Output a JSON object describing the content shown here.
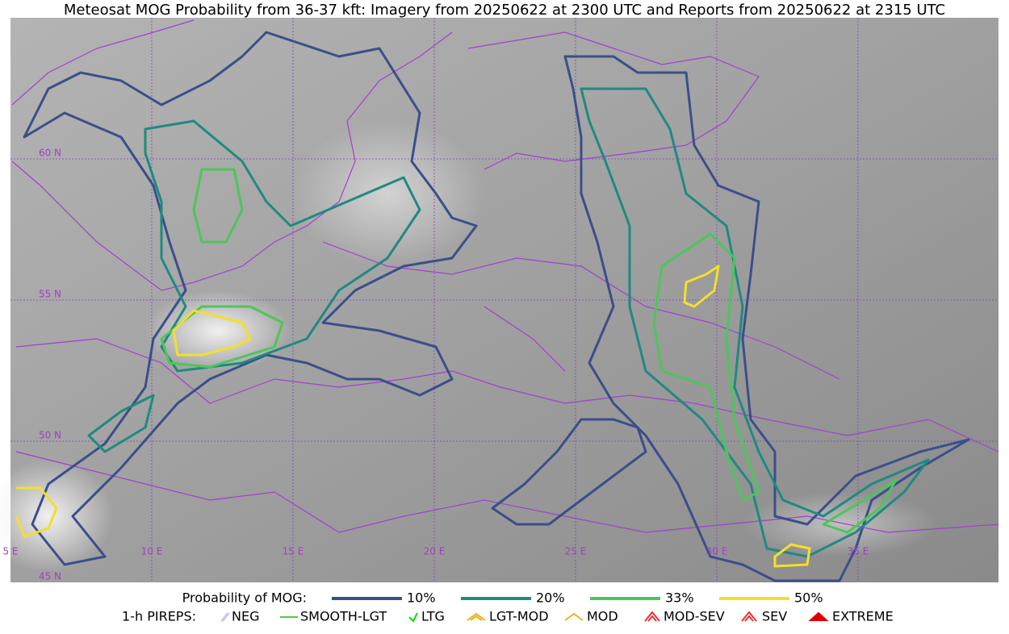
{
  "title": "Meteosat MOG Probability from 36-37 kft: Imagery from 20250622 at 2300 UTC and Reports from 20250622 at 2315 UTC",
  "grid_labels": {
    "longitude": [
      "5 E",
      "10 E",
      "15 E",
      "20 E",
      "25 E",
      "30 E",
      "35 E"
    ],
    "latitude": [
      "60 N",
      "55 N",
      "50 N",
      "45 N"
    ]
  },
  "legend": {
    "probability": {
      "label": "Probability of MOG:",
      "items": [
        {
          "name": "10%",
          "color": "#3a4f8a"
        },
        {
          "name": "20%",
          "color": "#1f8a80"
        },
        {
          "name": "33%",
          "color": "#4cc65a"
        },
        {
          "name": "50%",
          "color": "#f5df2a"
        }
      ]
    },
    "pireps": {
      "label": "1-h PIREPS:",
      "items": [
        {
          "name": "NEG",
          "color": "#c8c8f0"
        },
        {
          "name": "SMOOTH-LGT",
          "color": "#40d040"
        },
        {
          "name": "LTG",
          "color": "#00e000"
        },
        {
          "name": "LGT-MOD",
          "color": "#f0b020"
        },
        {
          "name": "MOD",
          "color": "#f0b020"
        },
        {
          "name": "MOD-SEV",
          "color": "#f03030"
        },
        {
          "name": "SEV",
          "color": "#f03030"
        },
        {
          "name": "EXTREME",
          "color": "#e00000"
        }
      ]
    }
  }
}
